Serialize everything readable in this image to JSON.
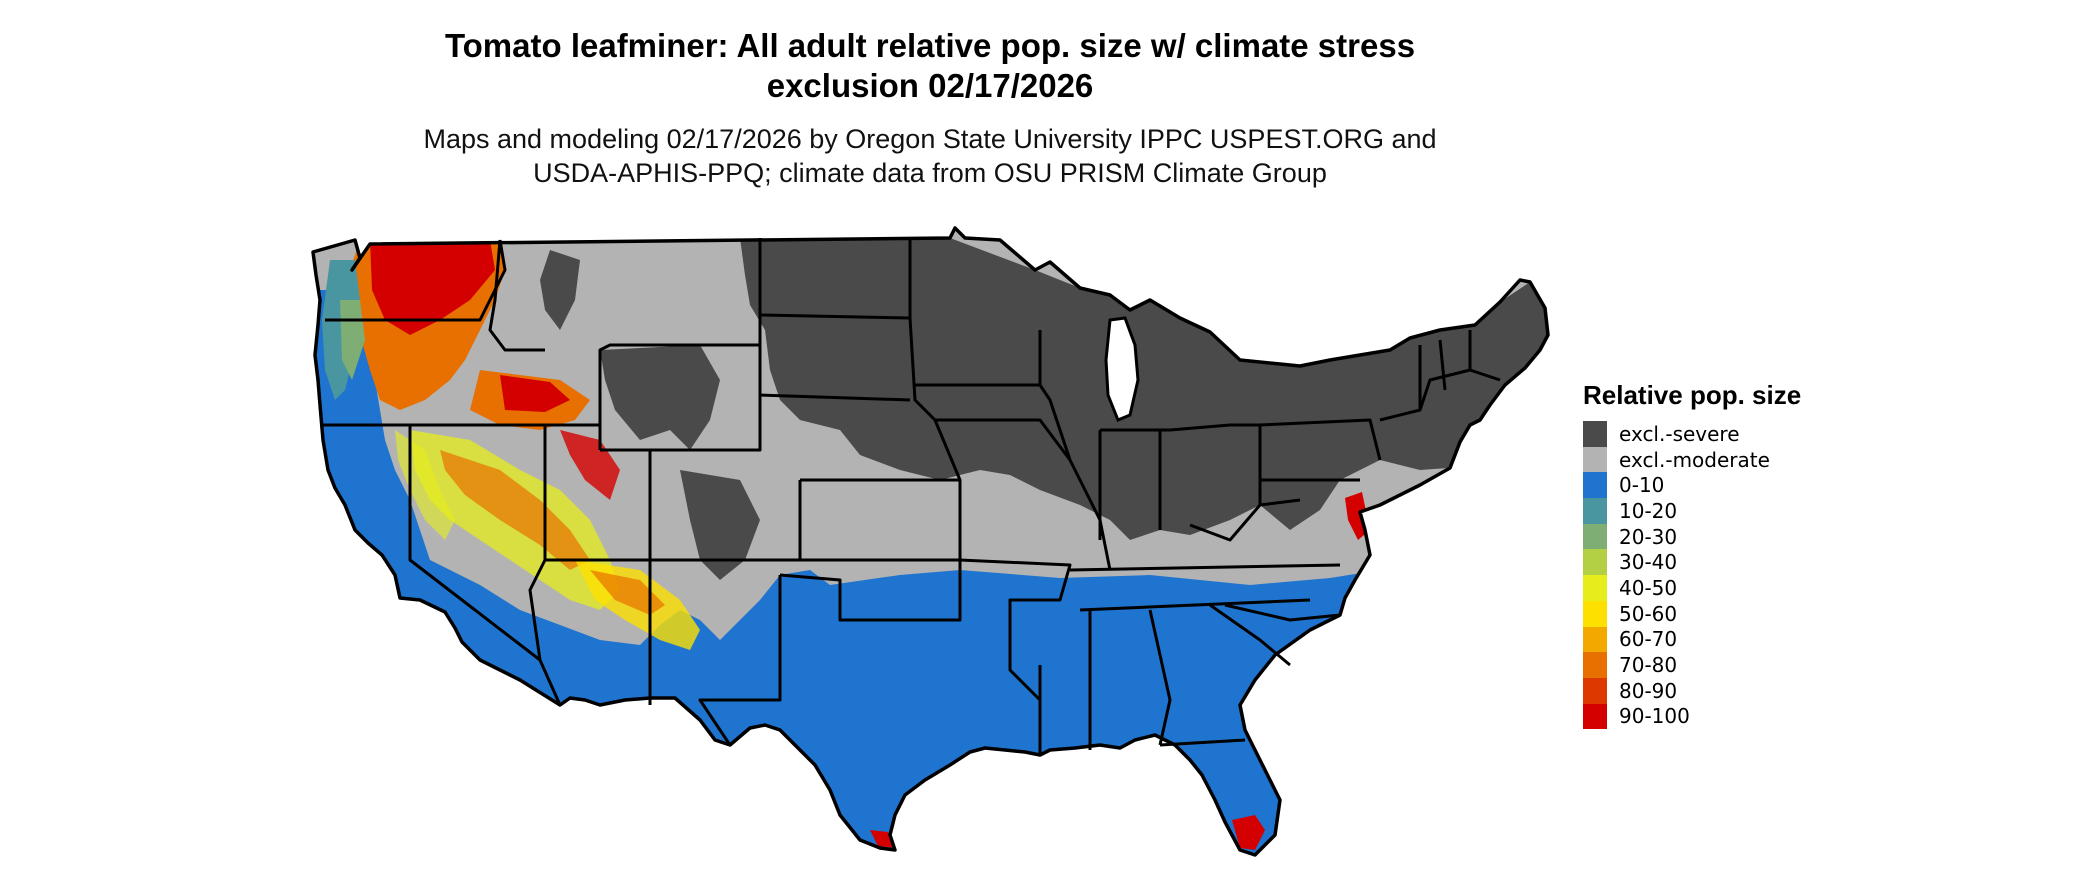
{
  "title_line1": "Tomato leafminer: All adult relative pop. size w/ climate stress",
  "title_line2": "exclusion 02/17/2026",
  "subtitle_line1": "Maps and modeling 02/17/2026 by Oregon State University IPPC USPEST.ORG and",
  "subtitle_line2": "USDA-APHIS-PPQ; climate data from OSU PRISM Climate Group",
  "legend": {
    "title": "Relative pop. size",
    "items": [
      {
        "label": "excl.-severe",
        "color": "#4a4a4a"
      },
      {
        "label": "excl.-moderate",
        "color": "#b3b3b3"
      },
      {
        "label": "0-10",
        "color": "#1f74cf"
      },
      {
        "label": "10-20",
        "color": "#4a96a0"
      },
      {
        "label": "20-30",
        "color": "#7fae74"
      },
      {
        "label": "30-40",
        "color": "#b3cf44"
      },
      {
        "label": "40-50",
        "color": "#e5ee1a"
      },
      {
        "label": "50-60",
        "color": "#fde000"
      },
      {
        "label": "60-70",
        "color": "#f3a800"
      },
      {
        "label": "70-80",
        "color": "#e87000"
      },
      {
        "label": "80-90",
        "color": "#dc3800"
      },
      {
        "label": "90-100",
        "color": "#d40000"
      }
    ]
  },
  "colors": {
    "severe": "#4a4a4a",
    "moderate": "#b3b3b3",
    "low": "#1f74cf",
    "high": "#d40000",
    "orange": "#e87000",
    "yellow": "#e5ee1a",
    "border": "#000000"
  }
}
